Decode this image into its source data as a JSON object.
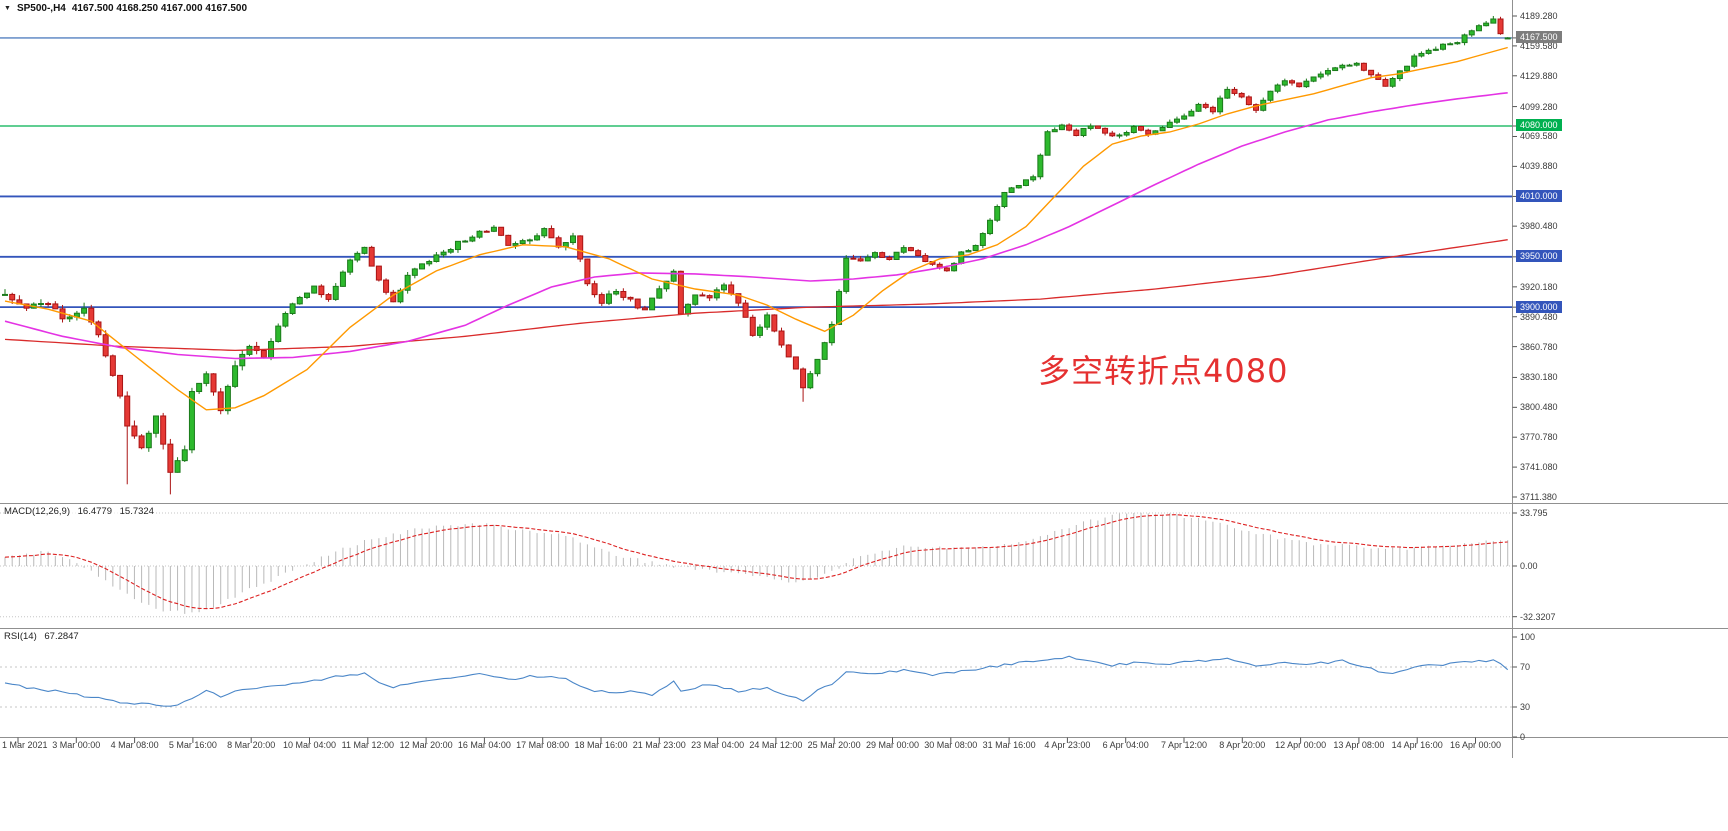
{
  "header": {
    "marker": "▼",
    "symbol": "SP500-,H4",
    "ohlc": "4167.500 4168.250 4167.000 4167.500"
  },
  "colors": {
    "up_fill": "#2DB92D",
    "up_border": "#1B7A1B",
    "down_fill": "#E53935",
    "down_border": "#AA1414",
    "ma_fast": "#FF9900",
    "ma_mid": "#E433E4",
    "ma_slow": "#D92B2B",
    "level_green": "#00B050",
    "level_blue": "#3355BB",
    "price_line": "#5580C0",
    "price_box": "#7D7D7D",
    "macd_hist": "#B9B9B9",
    "macd_signal": "#DD2222",
    "rsi_line": "#4A86C8",
    "separator": "#909090",
    "axis_text": "#3A3A3A",
    "grid_dotted": "#C6C6C6",
    "annotation": "#E53030"
  },
  "chart_data": {
    "type": "candlestick",
    "instrument": "SP500-",
    "timeframe": "H4",
    "last_quote": {
      "open": 4167.5,
      "high": 4168.25,
      "low": 4167.0,
      "close": 4167.5
    },
    "candle_count": 210,
    "price_axis": {
      "min": 3711.38,
      "max": 4189.28,
      "ticks": [
        4189.28,
        4159.58,
        4129.88,
        4099.28,
        4069.58,
        4039.88,
        3980.48,
        3920.18,
        3890.48,
        3860.78,
        3830.18,
        3800.48,
        3770.78,
        3741.08,
        3711.38
      ],
      "tick_labels": [
        "4189.280",
        "4159.580",
        "4129.880",
        "4099.280",
        "4069.580",
        "4039.880",
        "3980.480",
        "3920.180",
        "3890.480",
        "3860.780",
        "3830.180",
        "3800.480",
        "3770.780",
        "3741.080",
        "3711.380"
      ]
    },
    "levels": [
      {
        "price": 4167.5,
        "label": "4167.500",
        "kind": "current"
      },
      {
        "price": 4080.0,
        "label": "4080.000",
        "kind": "green"
      },
      {
        "price": 4010.0,
        "label": "4010.000",
        "kind": "blue"
      },
      {
        "price": 3950.0,
        "label": "3950.000",
        "kind": "blue"
      },
      {
        "price": 3900.0,
        "label": "3900.000",
        "kind": "blue"
      }
    ],
    "annotation": {
      "text": "多空转折点4080"
    },
    "close_path": [
      [
        0,
        3910
      ],
      [
        3,
        3898
      ],
      [
        6,
        3906
      ],
      [
        8,
        3886
      ],
      [
        11,
        3900
      ],
      [
        13,
        3872
      ],
      [
        15,
        3832
      ],
      [
        17,
        3785
      ],
      [
        19,
        3762
      ],
      [
        21,
        3792
      ],
      [
        23,
        3738
      ],
      [
        25,
        3760
      ],
      [
        26,
        3818
      ],
      [
        28,
        3836
      ],
      [
        30,
        3800
      ],
      [
        32,
        3840
      ],
      [
        34,
        3864
      ],
      [
        36,
        3850
      ],
      [
        38,
        3880
      ],
      [
        40,
        3904
      ],
      [
        43,
        3920
      ],
      [
        45,
        3906
      ],
      [
        48,
        3948
      ],
      [
        50,
        3960
      ],
      [
        52,
        3926
      ],
      [
        54,
        3906
      ],
      [
        56,
        3930
      ],
      [
        58,
        3942
      ],
      [
        60,
        3950
      ],
      [
        63,
        3964
      ],
      [
        66,
        3974
      ],
      [
        68,
        3980
      ],
      [
        70,
        3960
      ],
      [
        73,
        3966
      ],
      [
        75,
        3976
      ],
      [
        77,
        3960
      ],
      [
        79,
        3970
      ],
      [
        81,
        3922
      ],
      [
        83,
        3906
      ],
      [
        85,
        3916
      ],
      [
        87,
        3906
      ],
      [
        89,
        3896
      ],
      [
        91,
        3920
      ],
      [
        93,
        3934
      ],
      [
        94,
        3892
      ],
      [
        96,
        3914
      ],
      [
        98,
        3910
      ],
      [
        100,
        3924
      ],
      [
        102,
        3906
      ],
      [
        104,
        3872
      ],
      [
        106,
        3892
      ],
      [
        108,
        3864
      ],
      [
        110,
        3840
      ],
      [
        111,
        3820
      ],
      [
        113,
        3848
      ],
      [
        115,
        3884
      ],
      [
        117,
        3948
      ],
      [
        119,
        3944
      ],
      [
        121,
        3954
      ],
      [
        123,
        3946
      ],
      [
        125,
        3960
      ],
      [
        127,
        3950
      ],
      [
        129,
        3944
      ],
      [
        131,
        3936
      ],
      [
        133,
        3954
      ],
      [
        135,
        3960
      ],
      [
        137,
        3988
      ],
      [
        139,
        4014
      ],
      [
        141,
        4020
      ],
      [
        143,
        4030
      ],
      [
        145,
        4074
      ],
      [
        147,
        4080
      ],
      [
        149,
        4072
      ],
      [
        151,
        4080
      ],
      [
        153,
        4074
      ],
      [
        155,
        4070
      ],
      [
        157,
        4078
      ],
      [
        159,
        4072
      ],
      [
        162,
        4082
      ],
      [
        164,
        4090
      ],
      [
        166,
        4100
      ],
      [
        168,
        4094
      ],
      [
        170,
        4118
      ],
      [
        172,
        4110
      ],
      [
        174,
        4096
      ],
      [
        176,
        4114
      ],
      [
        178,
        4124
      ],
      [
        180,
        4120
      ],
      [
        182,
        4128
      ],
      [
        184,
        4134
      ],
      [
        186,
        4140
      ],
      [
        188,
        4144
      ],
      [
        190,
        4130
      ],
      [
        192,
        4120
      ],
      [
        194,
        4134
      ],
      [
        196,
        4148
      ],
      [
        198,
        4154
      ],
      [
        200,
        4160
      ],
      [
        202,
        4164
      ],
      [
        204,
        4174
      ],
      [
        206,
        4182
      ],
      [
        207,
        4186
      ],
      [
        208,
        4170
      ],
      [
        209,
        4167.5
      ]
    ],
    "wick_events": [
      {
        "index": 17,
        "low": 3724
      },
      {
        "index": 23,
        "low": 3714
      },
      {
        "index": 111,
        "low": 3806
      },
      {
        "index": 207,
        "high": 4189.3
      }
    ],
    "ma_fast_path": [
      [
        0,
        3906
      ],
      [
        6,
        3898
      ],
      [
        12,
        3886
      ],
      [
        18,
        3852
      ],
      [
        24,
        3818
      ],
      [
        28,
        3798
      ],
      [
        32,
        3800
      ],
      [
        36,
        3812
      ],
      [
        42,
        3838
      ],
      [
        48,
        3880
      ],
      [
        54,
        3912
      ],
      [
        60,
        3936
      ],
      [
        66,
        3952
      ],
      [
        72,
        3962
      ],
      [
        78,
        3960
      ],
      [
        84,
        3948
      ],
      [
        90,
        3928
      ],
      [
        96,
        3918
      ],
      [
        102,
        3912
      ],
      [
        106,
        3902
      ],
      [
        110,
        3888
      ],
      [
        114,
        3876
      ],
      [
        118,
        3892
      ],
      [
        122,
        3916
      ],
      [
        126,
        3936
      ],
      [
        130,
        3948
      ],
      [
        134,
        3952
      ],
      [
        138,
        3962
      ],
      [
        142,
        3980
      ],
      [
        146,
        4010
      ],
      [
        150,
        4040
      ],
      [
        154,
        4062
      ],
      [
        158,
        4070
      ],
      [
        162,
        4074
      ],
      [
        166,
        4082
      ],
      [
        170,
        4092
      ],
      [
        174,
        4100
      ],
      [
        178,
        4106
      ],
      [
        182,
        4112
      ],
      [
        186,
        4120
      ],
      [
        190,
        4128
      ],
      [
        194,
        4132
      ],
      [
        198,
        4138
      ],
      [
        202,
        4144
      ],
      [
        206,
        4152
      ],
      [
        209,
        4158
      ]
    ],
    "ma_mid_path": [
      [
        0,
        3886
      ],
      [
        8,
        3871
      ],
      [
        16,
        3860
      ],
      [
        24,
        3853
      ],
      [
        32,
        3849
      ],
      [
        40,
        3850
      ],
      [
        48,
        3856
      ],
      [
        56,
        3866
      ],
      [
        64,
        3882
      ],
      [
        70,
        3902
      ],
      [
        76,
        3920
      ],
      [
        82,
        3930
      ],
      [
        88,
        3934
      ],
      [
        96,
        3933
      ],
      [
        104,
        3930
      ],
      [
        112,
        3926
      ],
      [
        118,
        3928
      ],
      [
        124,
        3932
      ],
      [
        130,
        3939
      ],
      [
        136,
        3948
      ],
      [
        142,
        3962
      ],
      [
        148,
        3980
      ],
      [
        154,
        4001
      ],
      [
        160,
        4022
      ],
      [
        166,
        4042
      ],
      [
        172,
        4060
      ],
      [
        178,
        4074
      ],
      [
        184,
        4086
      ],
      [
        190,
        4094
      ],
      [
        196,
        4101
      ],
      [
        202,
        4107
      ],
      [
        209,
        4113
      ]
    ],
    "ma_slow_path": [
      [
        0,
        3868
      ],
      [
        16,
        3861
      ],
      [
        32,
        3857
      ],
      [
        48,
        3861
      ],
      [
        64,
        3871
      ],
      [
        80,
        3884
      ],
      [
        96,
        3894
      ],
      [
        112,
        3900
      ],
      [
        128,
        3903
      ],
      [
        144,
        3908
      ],
      [
        160,
        3918
      ],
      [
        176,
        3931
      ],
      [
        192,
        3949
      ],
      [
        209,
        3967
      ]
    ],
    "macd": {
      "name": "MACD(12,26,9)",
      "value_main": "16.4779",
      "value_signal": "15.7324",
      "axis_ticks": [
        "33.795",
        "0.00",
        "-32.3207"
      ],
      "axis_values": [
        33.795,
        0,
        -32.3207
      ],
      "path": [
        [
          0,
          6
        ],
        [
          6,
          9
        ],
        [
          10,
          2
        ],
        [
          14,
          -9
        ],
        [
          18,
          -21
        ],
        [
          22,
          -28
        ],
        [
          26,
          -30
        ],
        [
          30,
          -24
        ],
        [
          34,
          -15
        ],
        [
          38,
          -7
        ],
        [
          42,
          1
        ],
        [
          46,
          9
        ],
        [
          50,
          16
        ],
        [
          54,
          20
        ],
        [
          58,
          24
        ],
        [
          62,
          26
        ],
        [
          66,
          27
        ],
        [
          70,
          24
        ],
        [
          74,
          22
        ],
        [
          78,
          20
        ],
        [
          82,
          12
        ],
        [
          86,
          6
        ],
        [
          90,
          2
        ],
        [
          94,
          -1
        ],
        [
          98,
          -3
        ],
        [
          102,
          -5
        ],
        [
          106,
          -8
        ],
        [
          110,
          -10
        ],
        [
          114,
          -6
        ],
        [
          118,
          4
        ],
        [
          122,
          10
        ],
        [
          126,
          13
        ],
        [
          130,
          12
        ],
        [
          134,
          11
        ],
        [
          138,
          13
        ],
        [
          142,
          16
        ],
        [
          146,
          22
        ],
        [
          150,
          28
        ],
        [
          154,
          32
        ],
        [
          158,
          34
        ],
        [
          162,
          33
        ],
        [
          166,
          30
        ],
        [
          170,
          26
        ],
        [
          174,
          21
        ],
        [
          178,
          17
        ],
        [
          182,
          14
        ],
        [
          186,
          13
        ],
        [
          190,
          12
        ],
        [
          194,
          11
        ],
        [
          198,
          12
        ],
        [
          202,
          14
        ],
        [
          206,
          16
        ],
        [
          209,
          16.5
        ]
      ]
    },
    "rsi": {
      "name": "RSI(14)",
      "value": "67.2847",
      "last": 67.2847,
      "axis_ticks": [
        "100",
        "70",
        "30",
        "0"
      ],
      "axis_values": [
        100,
        70,
        30,
        0
      ],
      "path": [
        [
          0,
          55
        ],
        [
          4,
          48
        ],
        [
          8,
          45
        ],
        [
          12,
          40
        ],
        [
          16,
          35
        ],
        [
          20,
          33
        ],
        [
          24,
          31
        ],
        [
          26,
          39
        ],
        [
          28,
          46
        ],
        [
          30,
          41
        ],
        [
          34,
          49
        ],
        [
          38,
          52
        ],
        [
          42,
          55
        ],
        [
          46,
          60
        ],
        [
          50,
          63
        ],
        [
          52,
          55
        ],
        [
          54,
          50
        ],
        [
          58,
          56
        ],
        [
          62,
          60
        ],
        [
          66,
          64
        ],
        [
          70,
          58
        ],
        [
          74,
          61
        ],
        [
          78,
          58
        ],
        [
          81,
          48
        ],
        [
          84,
          44
        ],
        [
          88,
          46
        ],
        [
          90,
          42
        ],
        [
          93,
          55
        ],
        [
          94,
          45
        ],
        [
          98,
          53
        ],
        [
          102,
          46
        ],
        [
          106,
          49
        ],
        [
          109,
          41
        ],
        [
          111,
          36
        ],
        [
          113,
          46
        ],
        [
          115,
          53
        ],
        [
          117,
          66
        ],
        [
          121,
          64
        ],
        [
          125,
          67
        ],
        [
          129,
          62
        ],
        [
          133,
          66
        ],
        [
          137,
          70
        ],
        [
          141,
          74
        ],
        [
          145,
          78
        ],
        [
          148,
          80
        ],
        [
          151,
          76
        ],
        [
          154,
          72
        ],
        [
          158,
          75
        ],
        [
          162,
          73
        ],
        [
          166,
          76
        ],
        [
          170,
          78
        ],
        [
          174,
          70
        ],
        [
          178,
          74
        ],
        [
          182,
          73
        ],
        [
          186,
          76
        ],
        [
          190,
          68
        ],
        [
          192,
          63
        ],
        [
          196,
          70
        ],
        [
          200,
          72
        ],
        [
          204,
          75
        ],
        [
          207,
          77
        ],
        [
          209,
          67.3
        ]
      ]
    },
    "time_axis": [
      "1 Mar 2021",
      "3 Mar 00:00",
      "4 Mar 08:00",
      "5 Mar 16:00",
      "8 Mar 20:00",
      "10 Mar 04:00",
      "11 Mar 12:00",
      "12 Mar 20:00",
      "16 Mar 04:00",
      "17 Mar 08:00",
      "18 Mar 16:00",
      "21 Mar 23:00",
      "23 Mar 04:00",
      "24 Mar 12:00",
      "25 Mar 20:00",
      "29 Mar 00:00",
      "30 Mar 08:00",
      "31 Mar 16:00",
      "4 Apr 23:00",
      "6 Apr 04:00",
      "7 Apr 12:00",
      "8 Apr 20:00",
      "12 Apr 00:00",
      "13 Apr 08:00",
      "14 Apr 16:00",
      "16 Apr 00:00"
    ]
  }
}
